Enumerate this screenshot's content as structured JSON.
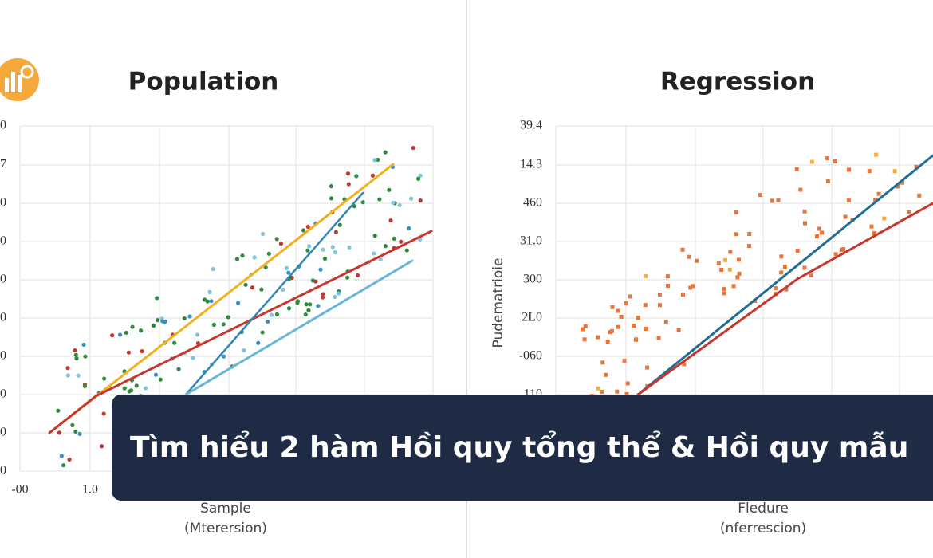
{
  "logo": {
    "alt": "chart icon"
  },
  "left_panel": {
    "title": "Population",
    "y_tick_labels": [
      "0",
      "7",
      "0",
      "0",
      "0",
      "0",
      "0",
      "0",
      "0",
      "0"
    ],
    "x_tick_labels": [
      "-00",
      "1.0"
    ],
    "x_axis_label": [
      "Sample",
      "(Mterersion)"
    ]
  },
  "right_panel": {
    "title": "Regression",
    "y_axis_label": "Pudematrioie",
    "y_tick_labels": [
      "39.4",
      "14.3",
      "460",
      "31.0",
      "300",
      "2L0",
      "-060",
      "110"
    ],
    "x_axis_label": [
      "Fledure",
      "(nferrescion)"
    ]
  },
  "banner": {
    "text": "Tìm hiểu 2 hàm Hồi quy tổng thể & Hồi quy mẫu"
  }
}
